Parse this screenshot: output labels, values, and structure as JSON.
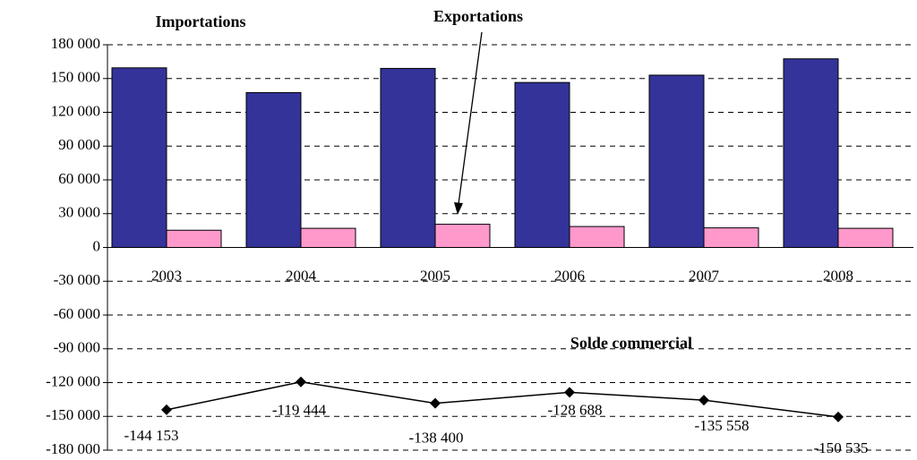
{
  "chart_data": {
    "type": "bar",
    "categories": [
      "2003",
      "2004",
      "2005",
      "2006",
      "2007",
      "2008"
    ],
    "series": [
      {
        "name": "Importations",
        "color": "#333399",
        "values": [
          159500,
          137500,
          159000,
          146500,
          153000,
          167500
        ]
      },
      {
        "name": "Exportations",
        "color": "#ff99cc",
        "values": [
          15300,
          17000,
          20600,
          18600,
          17400,
          17000
        ]
      },
      {
        "name": "Solde commercial",
        "type": "line",
        "color": "#000000",
        "values": [
          -144153,
          -119444,
          -138400,
          -128688,
          -135558,
          -150535
        ],
        "value_labels": [
          "-144 153",
          "-119 444",
          "-138 400",
          "-128 688",
          "-135 558",
          "-150 535"
        ]
      }
    ],
    "ylim": [
      -180000,
      180000
    ],
    "yticks": [
      {
        "value": -180000,
        "label": "-180 000"
      },
      {
        "value": -150000,
        "label": "-150 000"
      },
      {
        "value": -120000,
        "label": "-120 000"
      },
      {
        "value": -90000,
        "label": "-90 000"
      },
      {
        "value": -60000,
        "label": "-60 000"
      },
      {
        "value": -30000,
        "label": "-30 000"
      },
      0,
      {
        "value": 30000,
        "label": "30 000"
      },
      {
        "value": 60000,
        "label": "60 000"
      },
      {
        "value": 90000,
        "label": "90 000"
      },
      {
        "value": 120000,
        "label": "120 000"
      },
      {
        "value": 150000,
        "label": "150 000"
      },
      {
        "value": 180000,
        "label": "180 000"
      }
    ],
    "grid": true
  }
}
